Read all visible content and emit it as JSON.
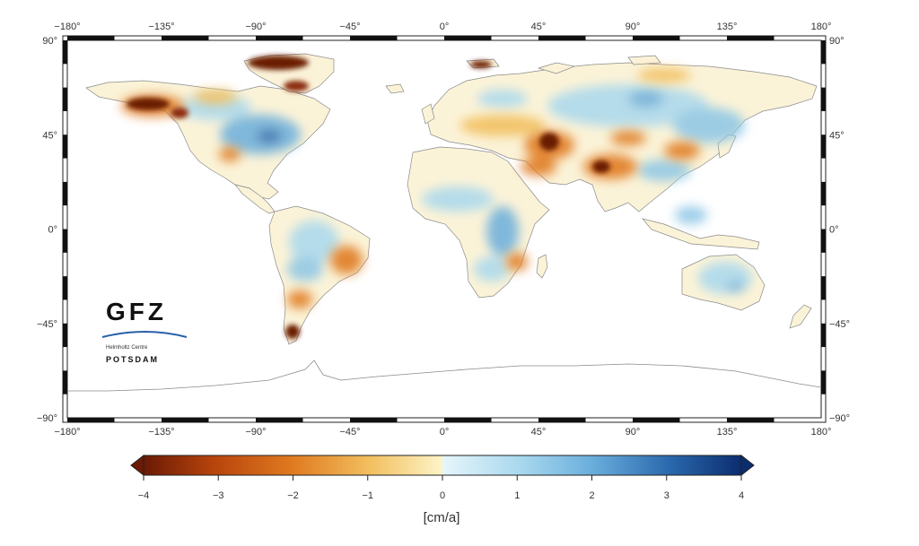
{
  "map": {
    "lon_ticks": [
      "−180°",
      "−135°",
      "−90°",
      "−45°",
      "0°",
      "45°",
      "90°",
      "135°",
      "180°"
    ],
    "lat_ticks_left": [
      "90°",
      "45°",
      "0°",
      "−45°",
      "−90°"
    ],
    "lat_ticks_right": [
      "90°",
      "45°",
      "0°",
      "−45°",
      "−90°"
    ]
  },
  "colorbar": {
    "ticks": [
      "−4",
      "−3",
      "−2",
      "−1",
      "0",
      "1",
      "2",
      "3",
      "4"
    ],
    "unit_label": "[cm/a]",
    "colors": [
      "#6b1a06",
      "#b8450c",
      "#e07b20",
      "#f2c060",
      "#fdf5c8",
      "#d8f1f8",
      "#8cc6e6",
      "#3f85c4",
      "#0b2d6e"
    ]
  },
  "logo": {
    "name": "GFZ",
    "line1": "Helmholtz Centre",
    "line2": "POTSDAM"
  }
}
